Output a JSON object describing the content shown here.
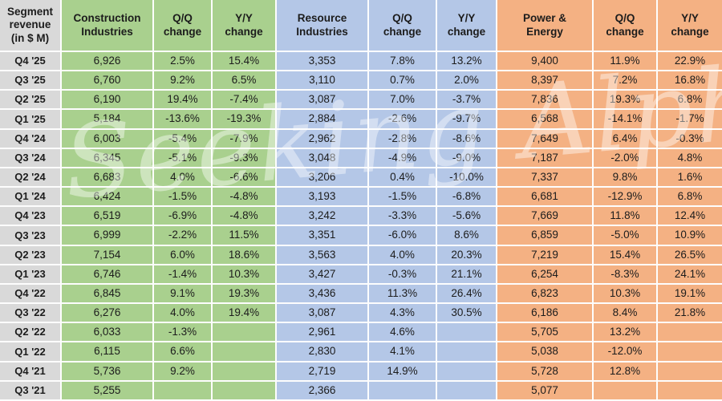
{
  "watermark": {
    "text": "Seeking Alpha"
  },
  "colors": {
    "green": "#a9d08e",
    "blue": "#b4c7e7",
    "orange": "#f4b183",
    "gray": "#d9d9d9",
    "gridline": "#fdfdfd"
  },
  "chart_data": {
    "type": "table",
    "title": "Segment revenue (in $ M)",
    "corner_lines": [
      "Segment",
      "revenue",
      "(in $ M)"
    ],
    "groups": [
      {
        "name": "Construction Industries",
        "label_lines": [
          "Construction",
          "Industries"
        ],
        "qq_lines": [
          "Q/Q",
          "change"
        ],
        "yy_lines": [
          "Y/Y",
          "change"
        ],
        "color": "#a9d08e"
      },
      {
        "name": "Resource Industries",
        "label_lines": [
          "Resource",
          "Industries"
        ],
        "qq_lines": [
          "Q/Q",
          "change"
        ],
        "yy_lines": [
          "Y/Y",
          "change"
        ],
        "color": "#b4c7e7"
      },
      {
        "name": "Power & Energy",
        "label_lines": [
          "Power &",
          "Energy"
        ],
        "qq_lines": [
          "Q/Q",
          "change"
        ],
        "yy_lines": [
          "Y/Y",
          "change"
        ],
        "color": "#f4b183"
      }
    ],
    "columns": [
      "Quarter",
      "Construction Industries",
      "Q/Q change",
      "Y/Y change",
      "Resource Industries",
      "Q/Q change",
      "Y/Y change",
      "Power & Energy",
      "Q/Q change",
      "Y/Y change"
    ],
    "rows": [
      {
        "quarter": "Q4 '25",
        "values": [
          "6,926",
          "2.5%",
          "15.4%",
          "3,353",
          "7.8%",
          "13.2%",
          "9,400",
          "11.9%",
          "22.9%"
        ]
      },
      {
        "quarter": "Q3 '25",
        "values": [
          "6,760",
          "9.2%",
          "6.5%",
          "3,110",
          "0.7%",
          "2.0%",
          "8,397",
          "7.2%",
          "16.8%"
        ]
      },
      {
        "quarter": "Q2 '25",
        "values": [
          "6,190",
          "19.4%",
          "-7.4%",
          "3,087",
          "7.0%",
          "-3.7%",
          "7,836",
          "19.3%",
          "6.8%"
        ]
      },
      {
        "quarter": "Q1 '25",
        "values": [
          "5,184",
          "-13.6%",
          "-19.3%",
          "2,884",
          "-2.6%",
          "-9.7%",
          "6,568",
          "-14.1%",
          "-1.7%"
        ]
      },
      {
        "quarter": "Q4 '24",
        "values": [
          "6,003",
          "-5.4%",
          "-7.9%",
          "2,962",
          "-2.8%",
          "-8.6%",
          "7,649",
          "6.4%",
          "-0.3%"
        ]
      },
      {
        "quarter": "Q3 '24",
        "values": [
          "6,345",
          "-5.1%",
          "-9.3%",
          "3,048",
          "-4.9%",
          "-9.0%",
          "7,187",
          "-2.0%",
          "4.8%"
        ]
      },
      {
        "quarter": "Q2 '24",
        "values": [
          "6,683",
          "4.0%",
          "-6.6%",
          "3,206",
          "0.4%",
          "-10.0%",
          "7,337",
          "9.8%",
          "1.6%"
        ]
      },
      {
        "quarter": "Q1 '24",
        "values": [
          "6,424",
          "-1.5%",
          "-4.8%",
          "3,193",
          "-1.5%",
          "-6.8%",
          "6,681",
          "-12.9%",
          "6.8%"
        ]
      },
      {
        "quarter": "Q4 '23",
        "values": [
          "6,519",
          "-6.9%",
          "-4.8%",
          "3,242",
          "-3.3%",
          "-5.6%",
          "7,669",
          "11.8%",
          "12.4%"
        ]
      },
      {
        "quarter": "Q3 '23",
        "values": [
          "6,999",
          "-2.2%",
          "11.5%",
          "3,351",
          "-6.0%",
          "8.6%",
          "6,859",
          "-5.0%",
          "10.9%"
        ]
      },
      {
        "quarter": "Q2 '23",
        "values": [
          "7,154",
          "6.0%",
          "18.6%",
          "3,563",
          "4.0%",
          "20.3%",
          "7,219",
          "15.4%",
          "26.5%"
        ]
      },
      {
        "quarter": "Q1 '23",
        "values": [
          "6,746",
          "-1.4%",
          "10.3%",
          "3,427",
          "-0.3%",
          "21.1%",
          "6,254",
          "-8.3%",
          "24.1%"
        ]
      },
      {
        "quarter": "Q4 '22",
        "values": [
          "6,845",
          "9.1%",
          "19.3%",
          "3,436",
          "11.3%",
          "26.4%",
          "6,823",
          "10.3%",
          "19.1%"
        ]
      },
      {
        "quarter": "Q3 '22",
        "values": [
          "6,276",
          "4.0%",
          "19.4%",
          "3,087",
          "4.3%",
          "30.5%",
          "6,186",
          "8.4%",
          "21.8%"
        ]
      },
      {
        "quarter": "Q2 '22",
        "values": [
          "6,033",
          "-1.3%",
          "",
          "2,961",
          "4.6%",
          "",
          "5,705",
          "13.2%",
          ""
        ]
      },
      {
        "quarter": "Q1 '22",
        "values": [
          "6,115",
          "6.6%",
          "",
          "2,830",
          "4.1%",
          "",
          "5,038",
          "-12.0%",
          ""
        ]
      },
      {
        "quarter": "Q4 '21",
        "values": [
          "5,736",
          "9.2%",
          "",
          "2,719",
          "14.9%",
          "",
          "5,728",
          "12.8%",
          ""
        ]
      },
      {
        "quarter": "Q3 '21",
        "values": [
          "5,255",
          "",
          "",
          "2,366",
          "",
          "",
          "5,077",
          "",
          ""
        ]
      }
    ]
  }
}
